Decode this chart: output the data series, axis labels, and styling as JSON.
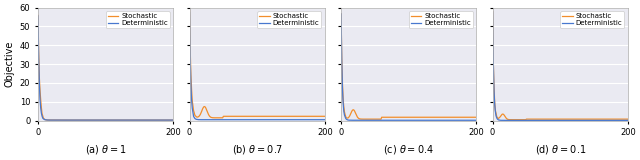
{
  "panels": [
    {
      "label": "(a) $\\theta = 1$",
      "theta": 1.0,
      "show_ylabel": true
    },
    {
      "label": "(b) $\\theta = 0.7$",
      "theta": 0.7,
      "show_ylabel": false
    },
    {
      "label": "(c) $\\theta = 0.4$",
      "theta": 0.4,
      "show_ylabel": false
    },
    {
      "label": "(d) $\\theta = 0.1$",
      "theta": 0.1,
      "show_ylabel": false
    }
  ],
  "n_iters": 201,
  "ylim": [
    0,
    60
  ],
  "xlim": [
    0,
    200
  ],
  "xticks": [
    0,
    200
  ],
  "yticks": [
    0,
    10,
    20,
    30,
    40,
    50,
    60
  ],
  "det_color": "#4878cf",
  "sto_color": "#f28e2b",
  "linewidth": 0.9,
  "legend_labels": [
    "Deterministic",
    "Stochastic"
  ],
  "ylabel": "Objective",
  "background_color": "#eaeaf2",
  "figure_facecolor": "#ffffff",
  "grid_color": "#ffffff",
  "start_val": 57.0,
  "decay_rate_theta1": 0.55,
  "decay_rate_theta07": 0.6,
  "decay_rate_theta04": 0.65,
  "decay_rate_theta01": 0.65
}
